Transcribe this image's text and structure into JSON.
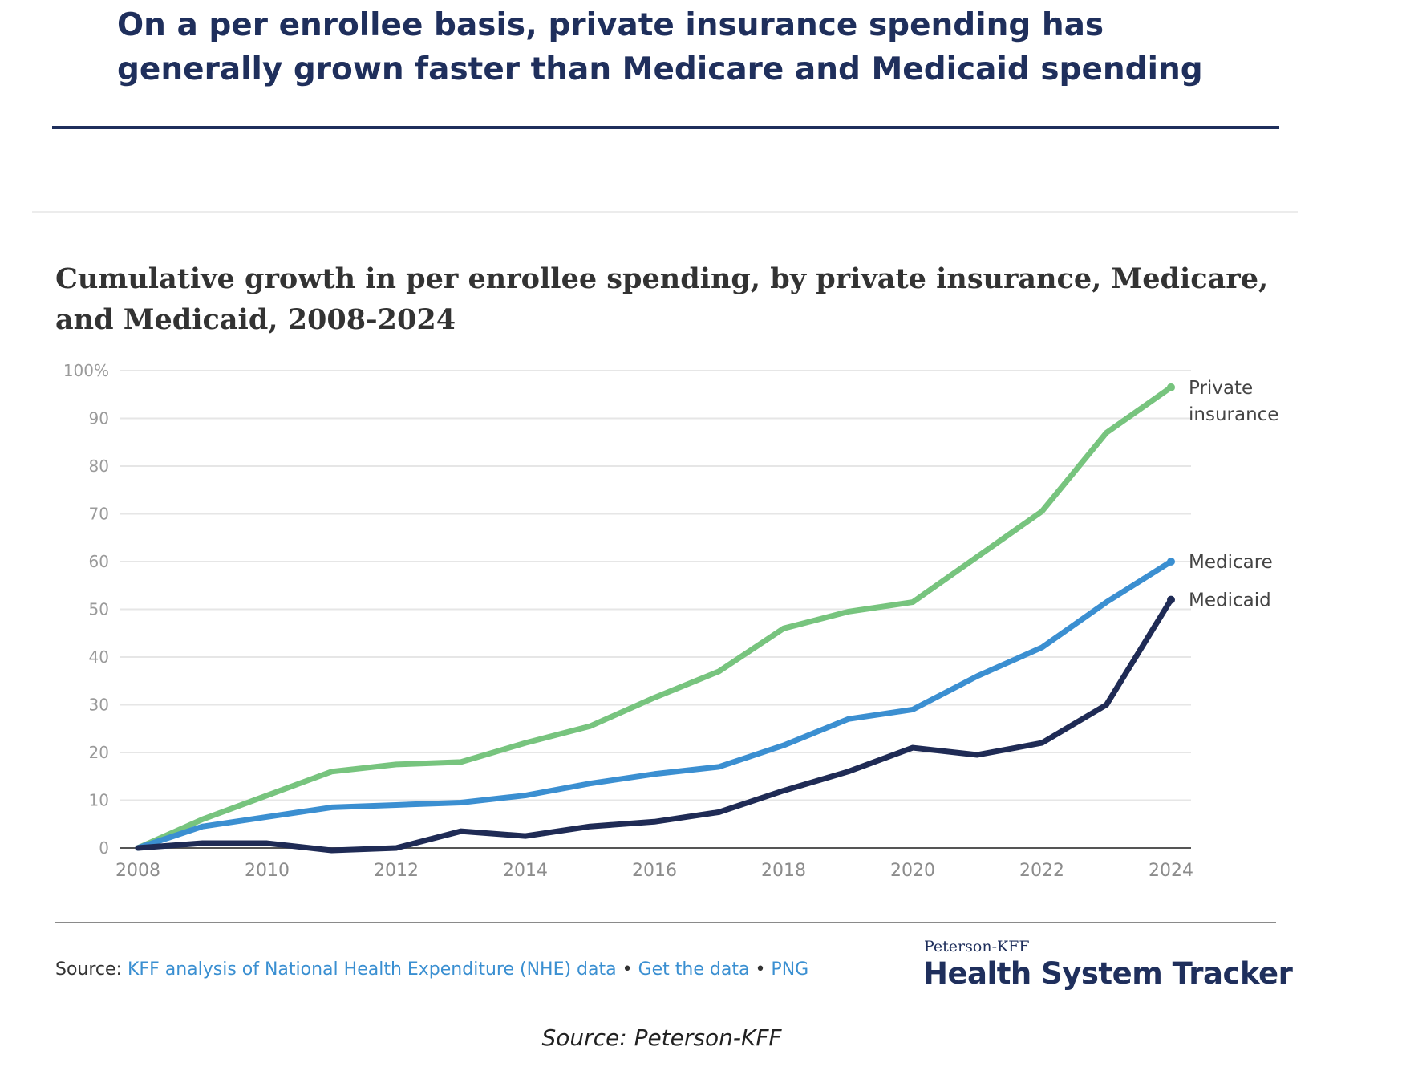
{
  "headline": "On a per enrollee basis, private insurance spending has generally grown faster than Medicare and Medicaid spending",
  "footer": {
    "source_prefix": "Source:",
    "source_link": "KFF analysis of National Health Expenditure (NHE) data",
    "separator": "•",
    "get_data_link": "Get the data",
    "png_link": "PNG",
    "brand_small": "Peterson-KFF",
    "brand_big": "Health System Tracker"
  },
  "caption": "Source: Peterson-KFF",
  "colors": {
    "private_insurance": "#77c47e",
    "medicare": "#3b8fd1",
    "medicaid": "#1f2b55",
    "headline": "#1f2f5c"
  },
  "chart_data": {
    "type": "line",
    "title": "Cumulative growth in per enrollee spending, by private insurance, Medicare, and Medicaid, 2008-2024",
    "xlabel": "",
    "ylabel": "",
    "x": [
      2008,
      2009,
      2010,
      2011,
      2012,
      2013,
      2014,
      2015,
      2016,
      2017,
      2018,
      2019,
      2020,
      2021,
      2022,
      2023,
      2024
    ],
    "x_ticks": [
      "2008",
      "2010",
      "2012",
      "2014",
      "2016",
      "2018",
      "2020",
      "2022",
      "2024"
    ],
    "y_ticks": [
      "100%",
      "90",
      "80",
      "70",
      "60",
      "50",
      "40",
      "30",
      "20",
      "10",
      "0"
    ],
    "ylim": [
      0,
      100
    ],
    "grid": true,
    "legend": "direct labels at line ends",
    "series": [
      {
        "name": "Private insurance",
        "label_lines": [
          "Private",
          "insurance"
        ],
        "values": [
          0,
          6,
          11,
          16,
          17.5,
          18,
          22,
          25.5,
          31.5,
          37,
          46,
          49.5,
          51.5,
          61,
          70.5,
          87,
          96.5
        ]
      },
      {
        "name": "Medicare",
        "label_lines": [
          "Medicare"
        ],
        "values": [
          0,
          4.5,
          6.5,
          8.5,
          9,
          9.5,
          11,
          13.5,
          15.5,
          17,
          21.5,
          27,
          29,
          36,
          42,
          51.5,
          60
        ]
      },
      {
        "name": "Medicaid",
        "label_lines": [
          "Medicaid"
        ],
        "values": [
          0,
          1,
          1,
          -0.5,
          0,
          3.5,
          2.5,
          4.5,
          5.5,
          7.5,
          12,
          16,
          21,
          19.5,
          22,
          30,
          52
        ]
      }
    ]
  }
}
